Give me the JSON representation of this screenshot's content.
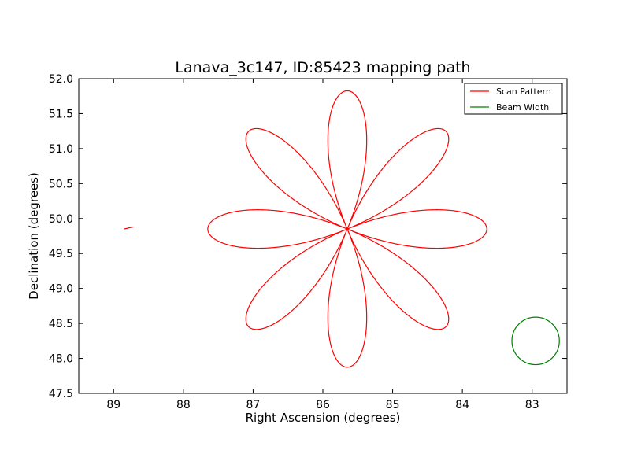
{
  "chart_data": {
    "type": "line",
    "title": "Lanava_3c147, ID:85423 mapping path",
    "xlabel": "Right Ascension (degrees)",
    "ylabel": "Declination (degrees)",
    "xlim": [
      89.5,
      82.5
    ],
    "ylim": [
      47.5,
      52.0
    ],
    "x_inverted": true,
    "xticks": [
      89,
      88,
      87,
      86,
      85,
      84,
      83
    ],
    "xtick_labels": [
      "89",
      "88",
      "87",
      "86",
      "85",
      "84",
      "83"
    ],
    "yticks": [
      47.5,
      48.0,
      48.5,
      49.0,
      49.5,
      50.0,
      50.5,
      51.0,
      51.5,
      52.0
    ],
    "ytick_labels": [
      "47.5",
      "48.0",
      "48.5",
      "49.0",
      "49.5",
      "50.0",
      "50.5",
      "51.0",
      "51.5",
      "52.0"
    ],
    "grid": false,
    "legend_placement": "top-right",
    "series": [
      {
        "name": "Scan Pattern",
        "color": "#ff0000",
        "shape": "rose curve, 8 petals",
        "center": [
          85.65,
          49.85
        ],
        "petal_tip_distance_deg": 2.0,
        "lead_in": [
          [
            88.85,
            49.85
          ],
          [
            88.72,
            49.88
          ]
        ]
      },
      {
        "name": "Beam Width",
        "color": "#008000",
        "shape": "circle",
        "center": [
          82.95,
          48.25
        ],
        "radius_deg": 0.34
      }
    ]
  }
}
